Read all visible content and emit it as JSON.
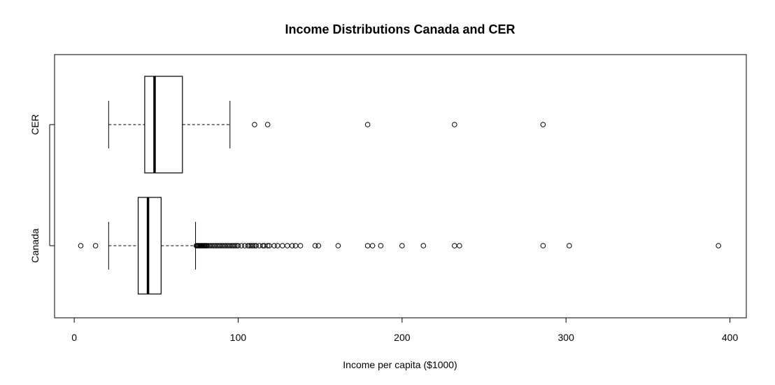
{
  "chart_data": {
    "type": "boxplot",
    "orientation": "horizontal",
    "title": "Income Distributions Canada and CER",
    "xlabel": "Income per capita ($1000)",
    "ylabel": "",
    "xlim": [
      -12,
      410
    ],
    "xticks": [
      0,
      100,
      200,
      300,
      400
    ],
    "grid": false,
    "series": [
      {
        "name": "Canada",
        "whisker_low": 21,
        "q1": 39,
        "median": 45,
        "q3": 53,
        "whisker_high": 74,
        "outliers": [
          4,
          13,
          74.5,
          75,
          75.5,
          76,
          76.5,
          77,
          77.5,
          78,
          78.5,
          79,
          79.5,
          80,
          80.5,
          81,
          82,
          83,
          84,
          85,
          86,
          87,
          88,
          89,
          90,
          91,
          92,
          93,
          94,
          95,
          96,
          97,
          98,
          99,
          100,
          102,
          104,
          106,
          107,
          108,
          109,
          110,
          111,
          113,
          115,
          116,
          118,
          119,
          122,
          124,
          127,
          130,
          133,
          135,
          138,
          147,
          149,
          161,
          179,
          182,
          187,
          200,
          213,
          232,
          235,
          286,
          302,
          393
        ]
      },
      {
        "name": "CER",
        "whisker_low": 21,
        "q1": 43,
        "median": 49,
        "q3": 66,
        "whisker_high": 95,
        "outliers": [
          110,
          118,
          179,
          232,
          286
        ]
      }
    ]
  }
}
